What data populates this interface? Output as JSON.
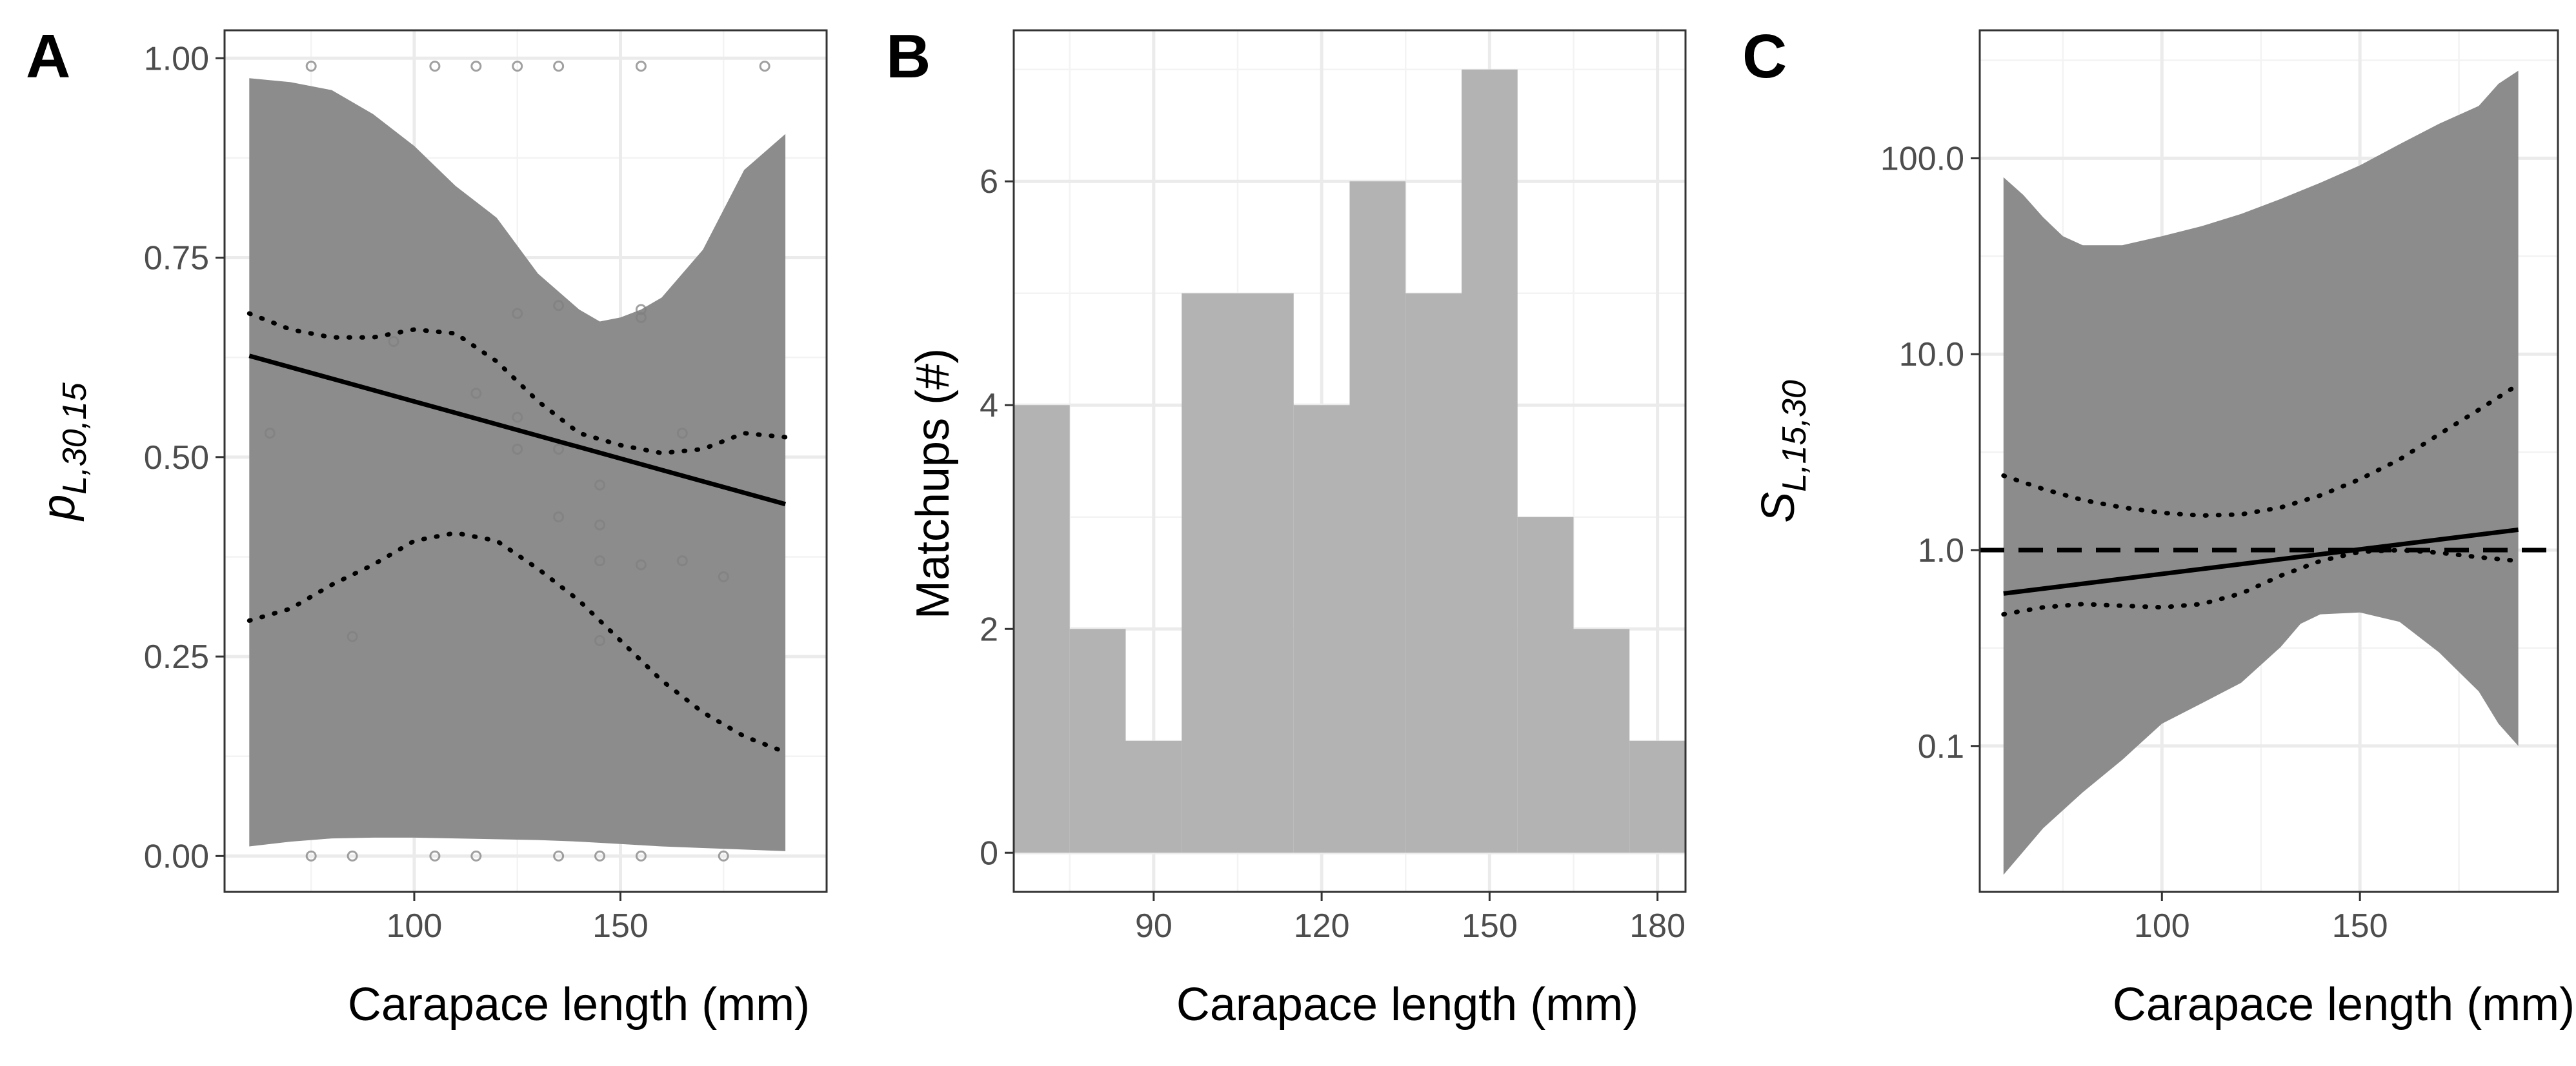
{
  "colors": {
    "ribbon": "#8c8c8c",
    "bar": "#b3b3b3",
    "line": "#000000",
    "point": "#808080",
    "grid_major": "#ebebeb",
    "grid_minor": "#f3f3f3",
    "frame": "#333333"
  },
  "panels": [
    {
      "tag": "A",
      "xlabel": "Carapace length (mm)",
      "ylabel": "p",
      "ylabel_sub": "L,30,15"
    },
    {
      "tag": "B",
      "xlabel": "Carapace length (mm)",
      "ylabel": "Matchups (#)"
    },
    {
      "tag": "C",
      "xlabel": "Carapace length (mm)",
      "ylabel": "S",
      "ylabel_sub": "L,15,30"
    }
  ],
  "chart_data": [
    {
      "type": "line",
      "title": "",
      "xlabel": "Carapace length (mm)",
      "ylabel": "p L,30,15",
      "xlim": [
        54,
        200
      ],
      "ylim": [
        -0.045,
        1.035
      ],
      "xticks": [
        100,
        150
      ],
      "xtick_labels": [
        "100",
        "150"
      ],
      "yticks": [
        0,
        0.25,
        0.5,
        0.75,
        1
      ],
      "ytick_labels": [
        "0.00",
        "0.25",
        "0.50",
        "0.75",
        "1.00"
      ],
      "grid": true,
      "fit": {
        "x": [
          60,
          190
        ],
        "y": [
          0.627,
          0.441
        ]
      },
      "inner_band_upper": {
        "x": [
          60,
          70,
          80,
          90,
          100,
          110,
          120,
          130,
          140,
          150,
          160,
          170,
          180,
          190
        ],
        "y": [
          0.68,
          0.66,
          0.65,
          0.65,
          0.66,
          0.655,
          0.62,
          0.57,
          0.53,
          0.515,
          0.505,
          0.51,
          0.53,
          0.525
        ]
      },
      "inner_band_lower": {
        "x": [
          60,
          70,
          80,
          90,
          100,
          110,
          120,
          130,
          140,
          150,
          160,
          170,
          180,
          190
        ],
        "y": [
          0.295,
          0.31,
          0.34,
          0.365,
          0.395,
          0.405,
          0.395,
          0.36,
          0.32,
          0.27,
          0.22,
          0.18,
          0.15,
          0.13
        ]
      },
      "ribbon_upper": {
        "x": [
          60,
          70,
          80,
          90,
          100,
          110,
          120,
          130,
          140,
          145,
          150,
          155,
          160,
          170,
          180,
          190
        ],
        "y": [
          0.975,
          0.97,
          0.96,
          0.93,
          0.89,
          0.84,
          0.8,
          0.73,
          0.685,
          0.67,
          0.675,
          0.685,
          0.7,
          0.76,
          0.86,
          0.905
        ]
      },
      "ribbon_lower": {
        "x": [
          60,
          70,
          80,
          90,
          100,
          110,
          120,
          130,
          140,
          150,
          160,
          170,
          180,
          190
        ],
        "y": [
          0.012,
          0.018,
          0.022,
          0.023,
          0.023,
          0.022,
          0.021,
          0.02,
          0.018,
          0.015,
          0.012,
          0.01,
          0.008,
          0.006
        ]
      },
      "points": {
        "x": [
          75,
          105,
          115,
          125,
          135,
          155,
          185,
          65,
          95,
          115,
          125,
          125,
          125,
          135,
          135,
          135,
          145,
          145,
          145,
          145,
          155,
          155,
          155,
          165,
          165,
          175,
          85,
          75,
          85,
          105,
          115,
          135,
          145,
          155,
          175
        ],
        "y": [
          0.99,
          0.99,
          0.99,
          0.99,
          0.99,
          0.99,
          0.99,
          0.53,
          0.645,
          0.58,
          0.68,
          0.55,
          0.51,
          0.69,
          0.51,
          0.425,
          0.465,
          0.415,
          0.37,
          0.27,
          0.675,
          0.685,
          0.365,
          0.53,
          0.37,
          0.35,
          0.275,
          0.0,
          0.0,
          0.0,
          0.0,
          0.0,
          0.0,
          0.0,
          0.0
        ]
      }
    },
    {
      "type": "bar",
      "title": "",
      "xlabel": "Carapace length (mm)",
      "ylabel": "Matchups (#)",
      "xlim": [
        65,
        185
      ],
      "ylim": [
        -0.35,
        7.35
      ],
      "xticks": [
        90,
        120,
        150,
        180
      ],
      "xtick_labels": [
        "90",
        "120",
        "150",
        "180"
      ],
      "yticks": [
        0,
        2,
        4,
        6
      ],
      "ytick_labels": [
        "0",
        "2",
        "4",
        "6"
      ],
      "grid": true,
      "bin_width": 10,
      "bin_centers": [
        70,
        80,
        90,
        100,
        110,
        120,
        130,
        140,
        150,
        160,
        170,
        180
      ],
      "values": [
        4,
        2,
        1,
        5,
        5,
        4,
        6,
        5,
        7,
        3,
        2,
        1
      ]
    },
    {
      "type": "line",
      "title": "",
      "xlabel": "Carapace length (mm)",
      "ylabel": "S L,15,30",
      "xlim": [
        54,
        200
      ],
      "yscale": "log",
      "ylim": [
        0.018,
        450
      ],
      "xticks": [
        100,
        150
      ],
      "xtick_labels": [
        "100",
        "150"
      ],
      "yticks": [
        0.1,
        1,
        10,
        100
      ],
      "ytick_labels": [
        "0.1",
        "1.0",
        "10.0",
        "100.0"
      ],
      "grid": true,
      "reference_line": 1,
      "fit": {
        "x": [
          60,
          190
        ],
        "y": [
          0.6,
          1.27
        ]
      },
      "inner_band_upper": {
        "x": [
          60,
          70,
          80,
          90,
          100,
          110,
          120,
          130,
          140,
          150,
          160,
          170,
          180,
          190
        ],
        "y": [
          2.4,
          2.05,
          1.8,
          1.65,
          1.55,
          1.5,
          1.52,
          1.65,
          1.9,
          2.3,
          2.9,
          3.9,
          5.2,
          7.0
        ]
      },
      "inner_band_lower": {
        "x": [
          60,
          70,
          80,
          90,
          100,
          110,
          120,
          130,
          140,
          150,
          160,
          170,
          180,
          190
        ],
        "y": [
          0.47,
          0.51,
          0.53,
          0.52,
          0.51,
          0.53,
          0.6,
          0.74,
          0.88,
          0.98,
          1.0,
          0.97,
          0.92,
          0.88
        ]
      },
      "ribbon_upper": {
        "x": [
          60,
          65,
          70,
          75,
          80,
          90,
          100,
          110,
          120,
          130,
          140,
          150,
          160,
          170,
          180,
          185,
          190
        ],
        "y": [
          80,
          65,
          50,
          40,
          36,
          36,
          40,
          45,
          52,
          62,
          75,
          92,
          118,
          150,
          185,
          240,
          280
        ]
      },
      "ribbon_lower": {
        "x": [
          60,
          70,
          80,
          90,
          100,
          110,
          120,
          130,
          135,
          140,
          150,
          160,
          170,
          180,
          185,
          190
        ],
        "y": [
          0.022,
          0.038,
          0.058,
          0.085,
          0.13,
          0.165,
          0.21,
          0.32,
          0.42,
          0.47,
          0.48,
          0.43,
          0.3,
          0.19,
          0.13,
          0.1
        ]
      }
    }
  ]
}
